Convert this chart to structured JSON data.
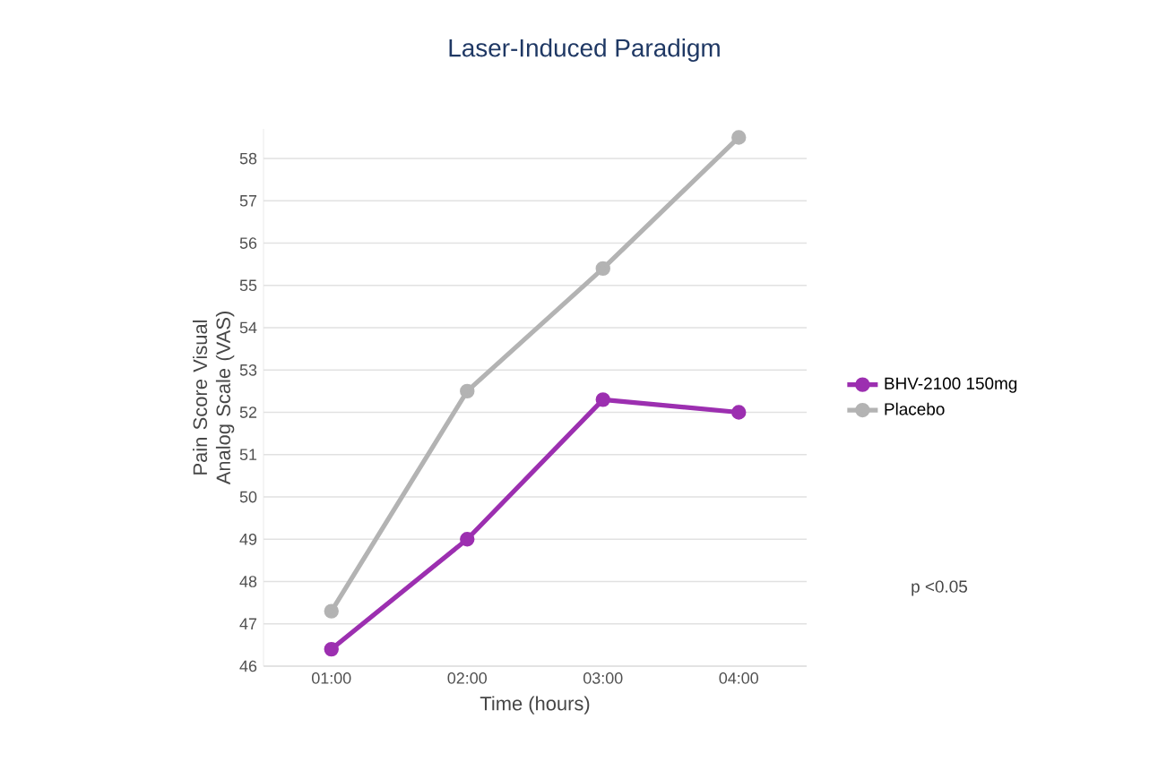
{
  "chart_data": {
    "type": "line",
    "title": "Laser-Induced Paradigm",
    "xlabel": "Time (hours)",
    "ylabel": "Pain Score Visual Analog Scale (VAS)",
    "categories": [
      "01:00",
      "02:00",
      "03:00",
      "04:00"
    ],
    "series": [
      {
        "name": "BHV-2100 150mg",
        "color": "#9c2fb0",
        "values": [
          46.4,
          49.0,
          52.3,
          52.0
        ]
      },
      {
        "name": "Placebo",
        "color": "#b3b3b3",
        "values": [
          47.3,
          52.5,
          55.4,
          58.5
        ]
      }
    ],
    "ylim": [
      46,
      58.7
    ],
    "yticks": [
      46,
      47,
      48,
      49,
      50,
      51,
      52,
      53,
      54,
      55,
      56,
      57,
      58
    ],
    "grid": "y",
    "legend": "right",
    "marker": "circle",
    "line_style": "solid",
    "annotations": [
      "p <0.05"
    ]
  }
}
